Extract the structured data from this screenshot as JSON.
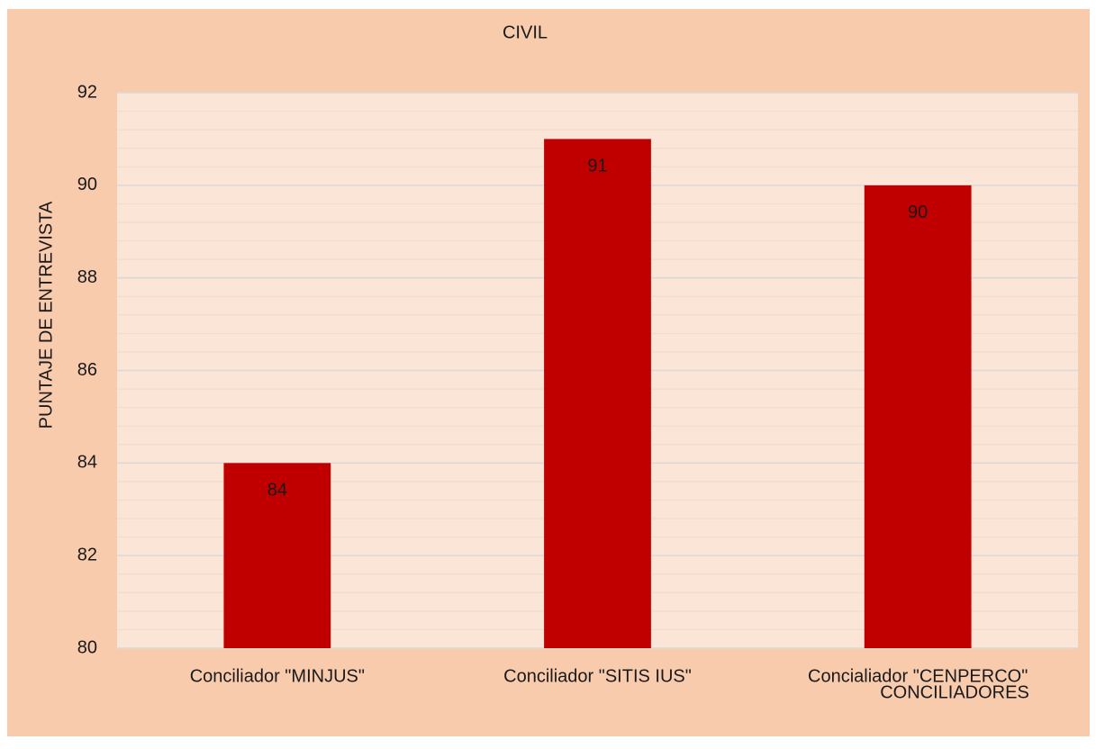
{
  "chart_data": {
    "type": "bar",
    "title": "CIVIL",
    "x_label": "CONCILIADORES",
    "y_label": "PUNTAJE DE ENTREVISTA",
    "categories": [
      "Conciliador \"MINJUS\"",
      "Conciliador \"SITIS IUS\"",
      "Concialiador \"CENPERCO\""
    ],
    "values": [
      84,
      91,
      90
    ],
    "color": "#c00000",
    "ylim": [
      80,
      92
    ],
    "yticks": [
      80,
      82,
      84,
      86,
      88,
      90,
      92
    ],
    "grid": true
  }
}
